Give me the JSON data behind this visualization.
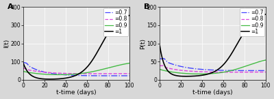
{
  "panel_A": {
    "label": "A",
    "ylabel": "I(t)",
    "xlabel": "t-time (days)",
    "xlim": [
      0,
      100
    ],
    "ylim": [
      0,
      400
    ],
    "yticks": [
      0,
      100,
      200,
      300,
      400
    ],
    "xticks": [
      0,
      20,
      40,
      60,
      80,
      100
    ]
  },
  "panel_B": {
    "label": "B",
    "ylabel": "P(t)",
    "xlabel": "t-time (days)",
    "xlim": [
      0,
      100
    ],
    "ylim": [
      0,
      200
    ],
    "yticks": [
      0,
      50,
      100,
      150,
      200
    ],
    "xticks": [
      0,
      20,
      40,
      60,
      80,
      100
    ]
  },
  "legend_entries": [
    {
      "label": "=0.7",
      "color": "#4444FF",
      "linestyle": "-."
    },
    {
      "label": "=0.8",
      "color": "#DD44DD",
      "linestyle": "--"
    },
    {
      "label": "=0.9",
      "color": "#44BB44",
      "linestyle": "-"
    },
    {
      "label": "=1",
      "color": "#000000",
      "linestyle": "-"
    }
  ],
  "background_color": "#d8d8d8",
  "plot_bg_color": "#e8e8e8",
  "grid_color": "#ffffff",
  "fontsize_label": 6.5,
  "fontsize_tick": 5.5,
  "fontsize_legend": 5.5,
  "fontsize_panel_label": 8
}
